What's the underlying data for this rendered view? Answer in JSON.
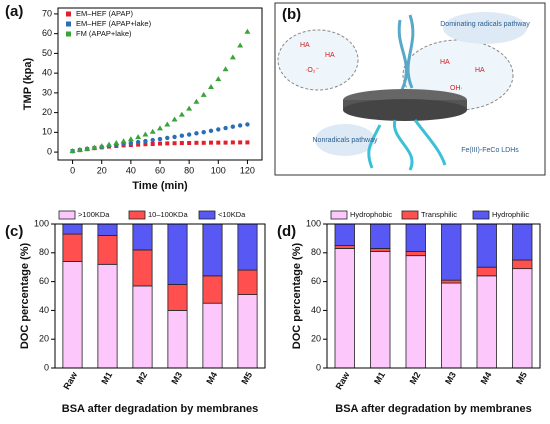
{
  "chart_data": [
    {
      "type": "line",
      "panel_label": "(a)",
      "xlabel": "Time (min)",
      "ylabel": "TMP (kpa)",
      "x": [
        0,
        5,
        10,
        15,
        20,
        25,
        30,
        35,
        40,
        45,
        50,
        55,
        60,
        65,
        70,
        75,
        80,
        85,
        90,
        95,
        100,
        105,
        110,
        115,
        120
      ],
      "series": [
        {
          "name": "EM–HEF (APAP)",
          "color": "#e0202a",
          "marker": "square",
          "values": [
            0.5,
            1,
            1.5,
            2,
            2.4,
            2.8,
            3.1,
            3.4,
            3.6,
            3.8,
            4,
            4.1,
            4.3,
            4.4,
            4.5,
            4.6,
            4.6,
            4.7,
            4.7,
            4.8,
            4.8,
            4.8,
            4.9,
            4.9,
            4.9
          ]
        },
        {
          "name": "EM–HEF (APAP+lake)",
          "color": "#2a6fb5",
          "marker": "circle",
          "values": [
            0.5,
            1.1,
            1.6,
            2.1,
            2.6,
            3.1,
            3.6,
            4.1,
            4.6,
            5.1,
            5.6,
            6.1,
            6.6,
            7.2,
            7.7,
            8.3,
            8.9,
            9.5,
            10.1,
            10.8,
            11.5,
            12.2,
            12.9,
            13.5,
            14
          ]
        },
        {
          "name": "FM (APAP+lake)",
          "color": "#3aa33a",
          "marker": "triangle",
          "values": [
            0.5,
            1.1,
            1.7,
            2.3,
            3,
            3.8,
            4.6,
            5.5,
            6.5,
            7.6,
            8.9,
            10.3,
            12,
            14,
            16.5,
            19,
            22,
            25.5,
            29,
            33,
            37,
            42,
            48,
            54,
            61
          ]
        }
      ],
      "xlim": [
        -10,
        130
      ],
      "xticks": [
        0,
        20,
        40,
        60,
        80,
        100,
        120
      ],
      "ylim": [
        -4,
        73
      ],
      "yticks": [
        0,
        10,
        20,
        30,
        40,
        50,
        60,
        70
      ]
    },
    {
      "type": "bar",
      "stacked": true,
      "panel_label": "(c)",
      "xlabel": "BSA after degradation by membranes",
      "ylabel": "DOC percentage (%)",
      "categories": [
        "Raw",
        "M1",
        "M2",
        "M3",
        "M4",
        "M5"
      ],
      "series": [
        {
          "name": ">100KDa",
          "color": "#fcc8fc",
          "values": [
            74,
            72,
            57,
            40,
            45,
            51
          ]
        },
        {
          "name": "10–100KDa",
          "color": "#ff4f4f",
          "values": [
            19,
            20,
            25,
            18,
            19,
            17
          ]
        },
        {
          "name": "<10KDa",
          "color": "#5858f5",
          "values": [
            7,
            8,
            18,
            42,
            36,
            32
          ]
        }
      ],
      "ylim": [
        0,
        100
      ],
      "yticks": [
        0,
        20,
        40,
        60,
        80,
        100
      ]
    },
    {
      "type": "bar",
      "stacked": true,
      "panel_label": "(d)",
      "xlabel": "BSA after degradation by membranes",
      "ylabel": "DOC percentage (%)",
      "categories": [
        "Raw",
        "M1",
        "M2",
        "M3",
        "M4",
        "M5"
      ],
      "series": [
        {
          "name": "Hydrophobic",
          "color": "#fcc8fc",
          "values": [
            83,
            81,
            78,
            59,
            64,
            69
          ]
        },
        {
          "name": "Transphilic",
          "color": "#ff4f4f",
          "values": [
            2,
            2,
            3,
            2,
            6,
            6
          ]
        },
        {
          "name": "Hydrophilic",
          "color": "#5858f5",
          "values": [
            15,
            17,
            19,
            39,
            30,
            25
          ]
        }
      ],
      "ylim": [
        0,
        100
      ],
      "yticks": [
        0,
        20,
        40,
        60,
        80,
        100
      ]
    }
  ],
  "diagram": {
    "panel_label": "(b)",
    "top_note": "Dominating radicals pathway",
    "side_note": "Nonradicals pathway",
    "material": "Fe(III)-FeCo LDHs",
    "pollutant": "HA",
    "superoxide": "·O₂⁻",
    "hydroxyl": "OH·"
  }
}
